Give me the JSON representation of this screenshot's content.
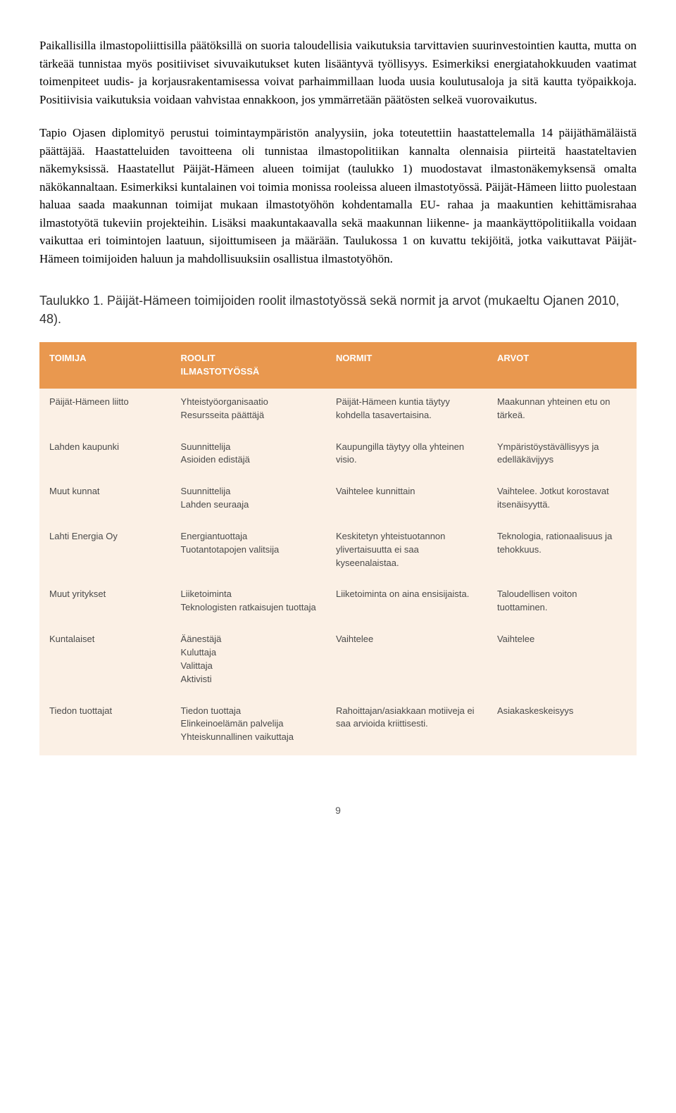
{
  "paragraphs": {
    "p1": "Paikallisilla ilmastopoliittisilla päätöksillä on suoria taloudellisia vaikutuksia tarvittavien suurinvestointien kautta, mutta on tärkeää tunnistaa myös positiiviset sivuvaikutukset kuten lisääntyvä työllisyys. Esimerkiksi energiatahokkuuden vaatimat toimenpiteet uudis- ja korjausrakentamisessa voivat parhaimmillaan luoda uusia koulutusaloja ja sitä kautta työpaikkoja. Positiivisia vaikutuksia voidaan vahvistaa ennakkoon, jos ymmärretään päätösten selkeä vuorovaikutus.",
    "p2": "Tapio Ojasen diplomityö perustui toimintaympäristön analyysiin, joka toteutettiin haastattelemalla 14 päijäthämäläistä päättäjää. Haastatteluiden tavoitteena oli tunnistaa ilmastopolitiikan kannalta olennaisia piirteitä haastateltavien näkemyksissä. Haastatellut Päijät-Hämeen alueen toimijat (taulukko 1) muodostavat ilmastonäkemyksensä omalta näkökannaltaan. Esimerkiksi kuntalainen voi toimia monissa rooleissa alueen ilmastotyössä. Päijät-Hämeen liitto puolestaan haluaa saada maakunnan toimijat mukaan ilmastotyöhön kohdentamalla EU- rahaa ja maakuntien kehittämisrahaa ilmastotyötä tukeviin projekteihin. Lisäksi maakuntakaavalla sekä maakunnan liikenne- ja maankäyttöpolitiikalla voidaan vaikuttaa eri toimintojen laatuun, sijoittumiseen ja määrään. Taulukossa 1 on kuvattu tekijöitä, jotka vaikuttavat Päijät-Hämeen toimijoiden haluun ja mahdollisuuksiin osallistua ilmastotyöhön."
  },
  "table_caption": "Taulukko 1. Päijät-Hämeen toimijoiden roolit ilmastotyössä sekä normit ja arvot (mukaeltu Ojanen 2010, 48).",
  "table": {
    "header_bg": "#e9984f",
    "header_text_color": "#ffffff",
    "body_bg": "#fbf0e5",
    "body_text_color": "#4a4a4a",
    "columns": [
      {
        "label": "TOIMIJA",
        "sub": ""
      },
      {
        "label": "ROOLIT",
        "sub": "ILMASTOTYÖSSÄ"
      },
      {
        "label": "NORMIT",
        "sub": ""
      },
      {
        "label": "ARVOT",
        "sub": ""
      }
    ],
    "rows": [
      {
        "toimija": "Päijät-Hämeen liitto",
        "roolit": "Yhteistyöorganisaatio\nResursseita päättäjä",
        "normit": "Päijät-Hämeen kuntia täytyy kohdella tasavertaisina.",
        "arvot": "Maakunnan yhteinen etu on tärkeä."
      },
      {
        "toimija": "Lahden kaupunki",
        "roolit": "Suunnittelija\nAsioiden edistäjä",
        "normit": "Kaupungilla täytyy olla yhteinen visio.",
        "arvot": "Ympäristöystävällisyys ja edelläkävijyys"
      },
      {
        "toimija": "Muut kunnat",
        "roolit": "Suunnittelija\nLahden seuraaja",
        "normit": "Vaihtelee kunnittain",
        "arvot": "Vaihtelee. Jotkut korostavat itsenäisyyttä."
      },
      {
        "toimija": "Lahti Energia Oy",
        "roolit": "Energiantuottaja\nTuotantotapojen valitsija",
        "normit": "Keskitetyn yhteistuotannon ylivertaisuutta ei saa kyseenalaistaa.",
        "arvot": "Teknologia, rationaalisuus ja tehokkuus."
      },
      {
        "toimija": "Muut yritykset",
        "roolit": "Liiketoiminta\nTeknologisten ratkaisujen tuottaja",
        "normit": "Liiketoiminta on aina ensisijaista.",
        "arvot": "Taloudellisen voiton tuottaminen."
      },
      {
        "toimija": "Kuntalaiset",
        "roolit": "Äänestäjä\nKuluttaja\nValittaja\nAktivisti",
        "normit": "Vaihtelee",
        "arvot": "Vaihtelee"
      },
      {
        "toimija": "Tiedon tuottajat",
        "roolit": "Tiedon tuottaja\nElinkeinoelämän palvelija\nYhteiskunnallinen vaikuttaja",
        "normit": "Rahoittajan/asiakkaan motiiveja ei saa arvioida kriittisesti.",
        "arvot": "Asiakaskeskeisyys"
      }
    ]
  },
  "page_number": "9"
}
